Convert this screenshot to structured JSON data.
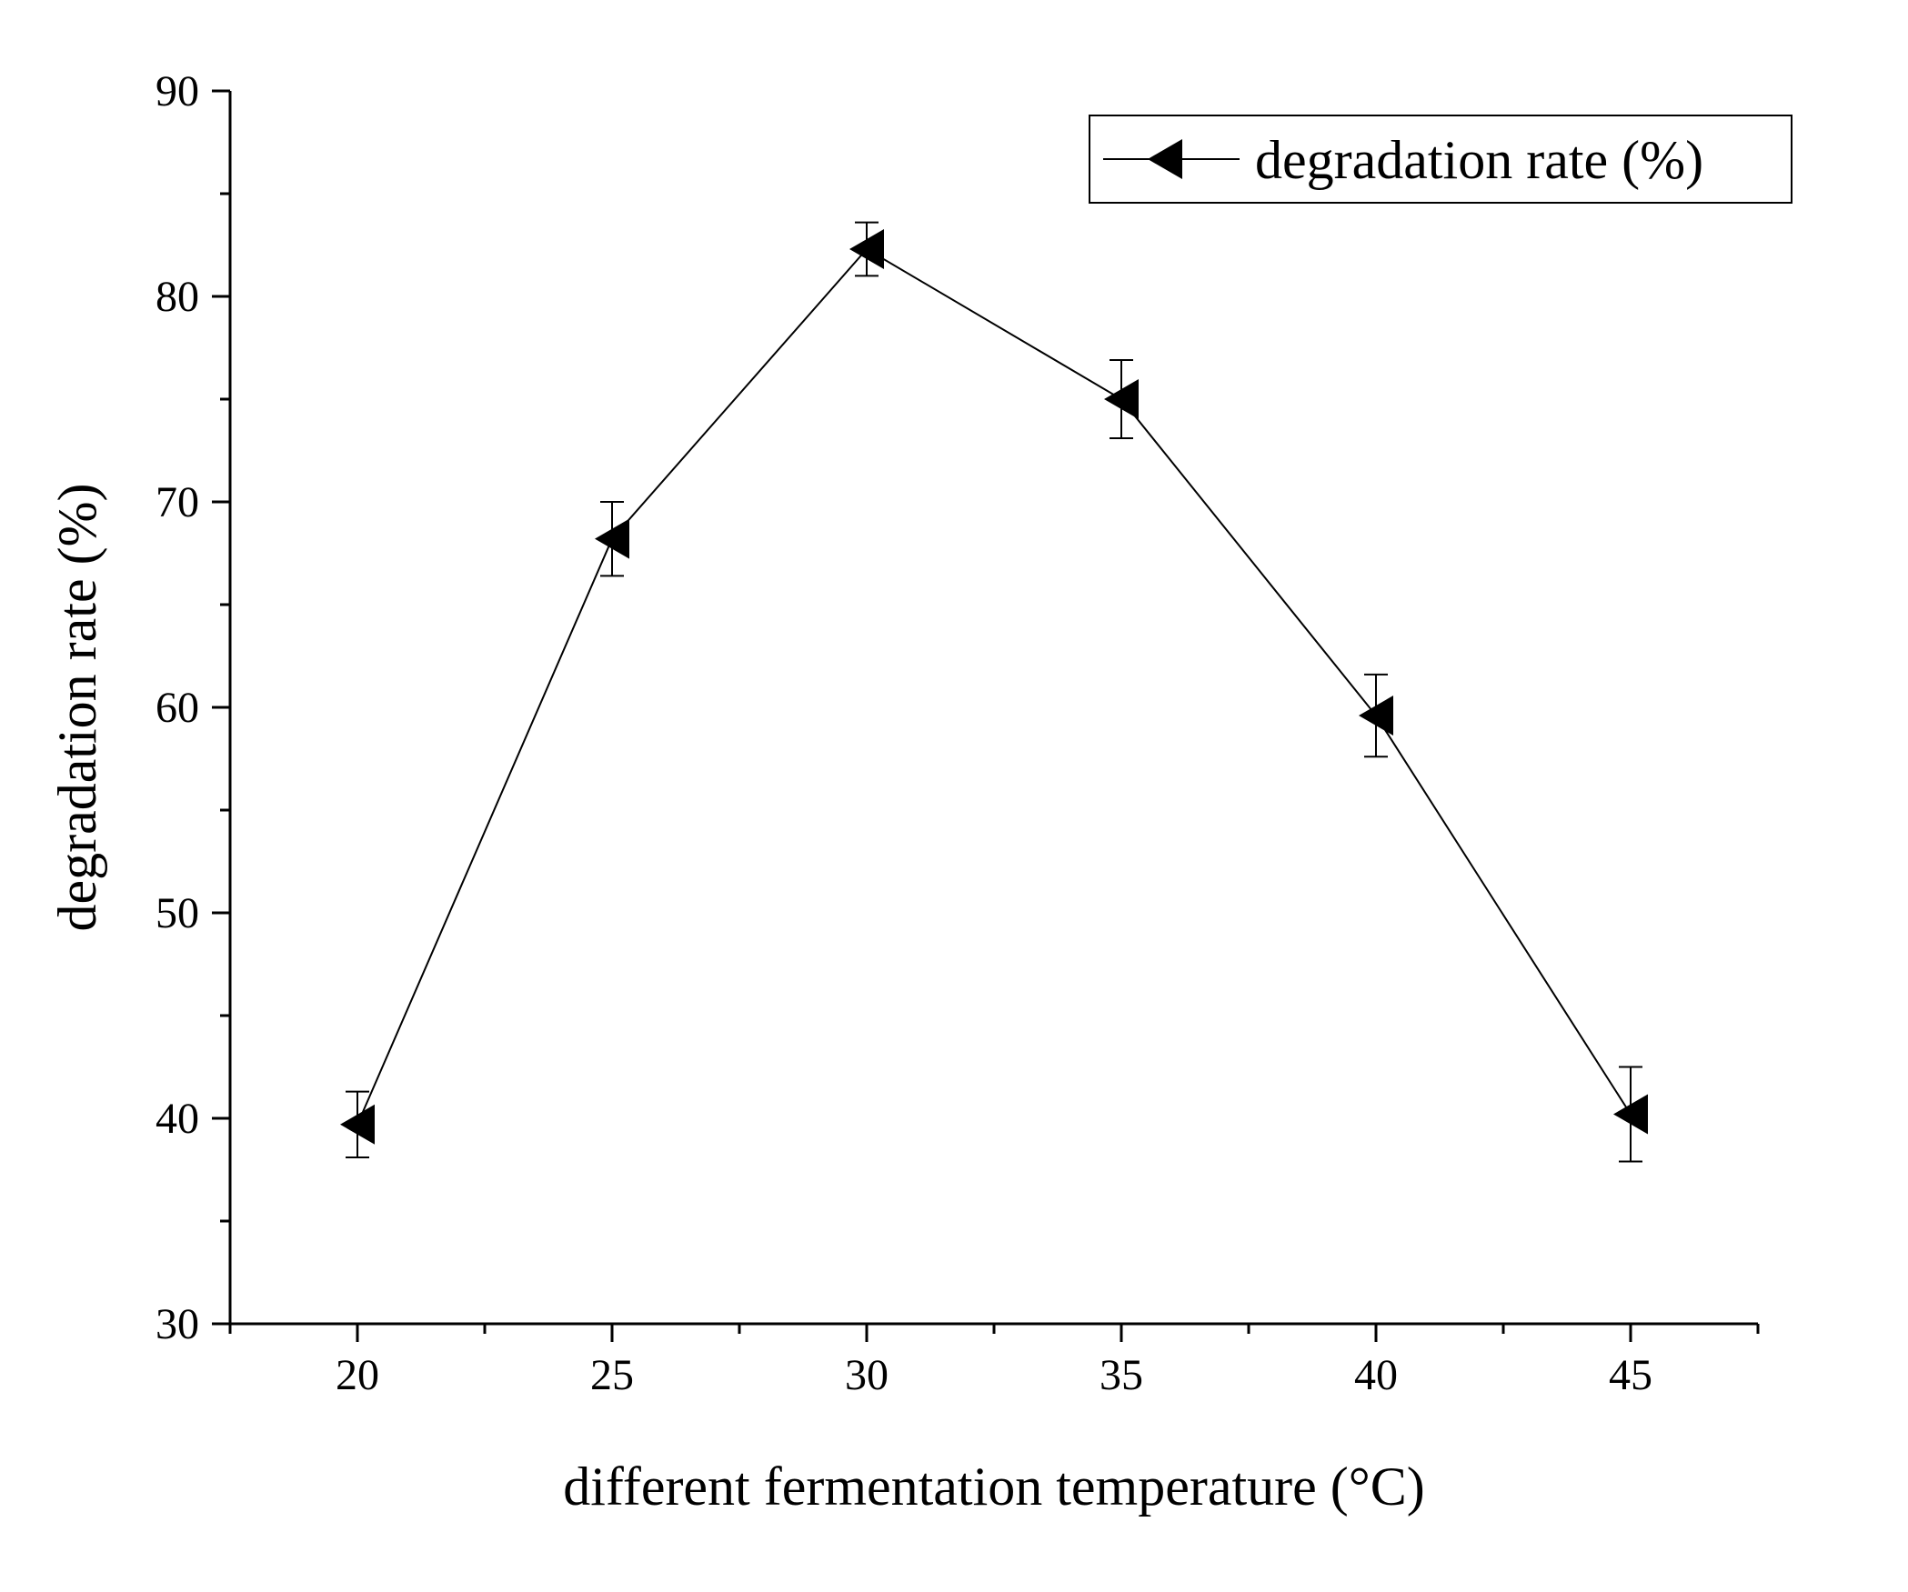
{
  "chart_data": {
    "type": "line",
    "title": "",
    "xlabel": "different fermentation temperature (°C)",
    "ylabel": "degradation rate (%)",
    "x": [
      20,
      25,
      30,
      35,
      40,
      45
    ],
    "xticks": [
      "20",
      "25",
      "30",
      "35",
      "40",
      "45"
    ],
    "yticks": [
      "30",
      "40",
      "50",
      "60",
      "70",
      "80",
      "90"
    ],
    "xlim": [
      17.5,
      47.5
    ],
    "ylim": [
      30,
      90
    ],
    "grid": false,
    "legend_position": "top-right",
    "series": [
      {
        "name": "degradation rate (%)",
        "marker": "left-pointing-triangle",
        "color": "#000000",
        "values": [
          39.7,
          68.2,
          82.3,
          75.0,
          59.6,
          40.2
        ],
        "errors": [
          1.6,
          1.8,
          1.3,
          1.9,
          2.0,
          2.3
        ]
      }
    ]
  }
}
